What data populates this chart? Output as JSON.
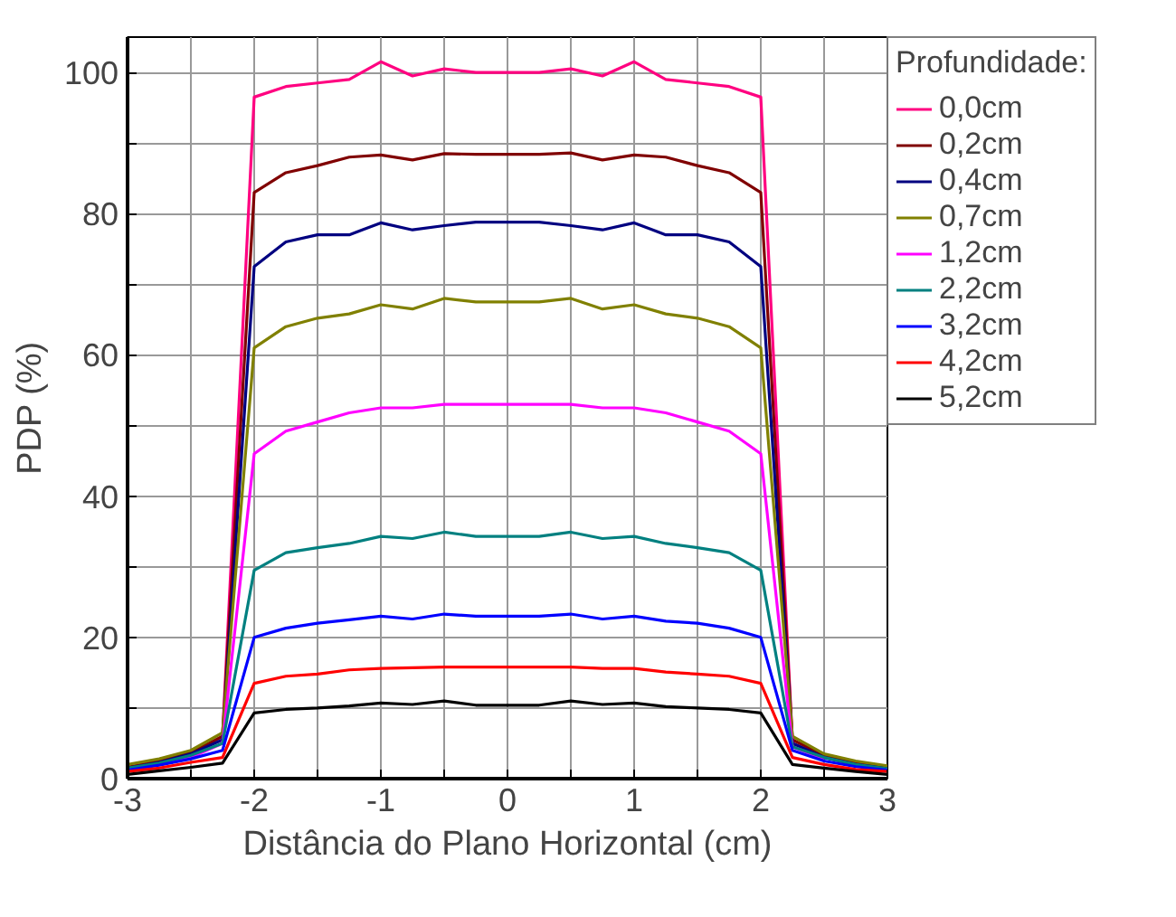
{
  "chart_data": {
    "type": "line",
    "xlabel": "Distância do Plano Horizontal (cm)",
    "ylabel": "PDP (%)",
    "legend_title": "Profundidade:",
    "x": [
      -3,
      -2.75,
      -2.5,
      -2.25,
      -2,
      -1.75,
      -1.5,
      -1.25,
      -1,
      -0.75,
      -0.5,
      -0.25,
      0,
      0.25,
      0.5,
      0.75,
      1,
      1.25,
      1.5,
      1.75,
      2,
      2.25,
      2.5,
      2.75,
      3
    ],
    "xlim": [
      -3,
      3
    ],
    "xticks": [
      -3,
      {
        "value": -2.5,
        "label": null
      },
      -2,
      {
        "value": -1.5,
        "label": null
      },
      -1,
      {
        "value": -0.5,
        "label": null
      },
      0,
      {
        "value": 0.5,
        "label": null
      },
      1,
      {
        "value": 1.5,
        "label": null
      },
      2,
      {
        "value": 2.5,
        "label": null
      },
      3
    ],
    "ylim": [
      0,
      105
    ],
    "yticks": [
      0,
      {
        "value": 10,
        "label": null
      },
      20,
      {
        "value": 30,
        "label": null
      },
      40,
      {
        "value": 50,
        "label": null
      },
      60,
      {
        "value": 70,
        "label": null
      },
      80,
      {
        "value": 90,
        "label": null
      },
      100
    ],
    "grid": true,
    "legend": "top right",
    "line_style": "solid",
    "series": [
      {
        "name": "0,0cm",
        "color": "#ff0080",
        "values": [
          null,
          null,
          3.5,
          6,
          96.5,
          98,
          98.5,
          99,
          101.5,
          99.5,
          100.5,
          100,
          100,
          100,
          100.5,
          99.5,
          101.5,
          99,
          98.5,
          98,
          96.5,
          5,
          3,
          null,
          null
        ]
      },
      {
        "name": "0,2cm",
        "color": "#800000",
        "values": [
          1.6,
          2.5,
          3.7,
          6,
          83,
          85.8,
          86.8,
          88,
          88.3,
          87.6,
          88.5,
          88.4,
          88.4,
          88.4,
          88.6,
          87.6,
          88.3,
          88,
          86.8,
          85.8,
          83,
          5.5,
          3.3,
          2.3,
          1.6
        ]
      },
      {
        "name": "0,4cm",
        "color": "#000080",
        "values": [
          1.5,
          2.3,
          3.5,
          5.5,
          72.5,
          76,
          77,
          77,
          78.7,
          77.7,
          78.3,
          78.8,
          78.8,
          78.8,
          78.3,
          77.7,
          78.7,
          77,
          77,
          76,
          72.5,
          5,
          3,
          2,
          1.5
        ]
      },
      {
        "name": "0,7cm",
        "color": "#808000",
        "values": [
          2,
          2.8,
          4,
          6.5,
          61,
          64,
          65.2,
          65.8,
          67.1,
          66.5,
          68,
          67.5,
          67.5,
          67.5,
          68,
          66.5,
          67.1,
          65.8,
          65.2,
          64,
          61,
          6,
          3.5,
          2.5,
          1.8
        ]
      },
      {
        "name": "1,2cm",
        "color": "#ff00ff",
        "values": [
          null,
          2,
          3,
          5,
          46,
          49.2,
          50.5,
          51.8,
          52.5,
          52.5,
          53,
          53,
          53,
          53,
          53,
          52.5,
          52.5,
          51.8,
          50.5,
          49.2,
          46,
          4.5,
          2.8,
          null,
          null
        ]
      },
      {
        "name": "2,2cm",
        "color": "#008080",
        "values": [
          1.5,
          2.2,
          3.3,
          5,
          29.5,
          32,
          32.7,
          33.3,
          34.3,
          34,
          34.9,
          34.3,
          34.3,
          34.3,
          34.9,
          34,
          34.3,
          33.3,
          32.7,
          32,
          29.5,
          4.5,
          3,
          2,
          1.4
        ]
      },
      {
        "name": "3,2cm",
        "color": "#0000ff",
        "values": [
          1.2,
          1.9,
          2.8,
          4,
          20,
          21.3,
          22,
          22.5,
          23,
          22.6,
          23.3,
          23,
          23,
          23,
          23.3,
          22.6,
          23,
          22.3,
          22,
          21.3,
          20,
          4,
          2.5,
          1.7,
          1.2
        ]
      },
      {
        "name": "4,2cm",
        "color": "#ff0000",
        "values": [
          1,
          1.5,
          2.3,
          3,
          13.5,
          14.5,
          14.8,
          15.4,
          15.6,
          15.7,
          15.8,
          15.8,
          15.8,
          15.8,
          15.8,
          15.6,
          15.6,
          15.1,
          14.8,
          14.5,
          13.5,
          3,
          2,
          1.3,
          1
        ]
      },
      {
        "name": "5,2cm",
        "color": "#000000",
        "values": [
          0.6,
          1.1,
          1.6,
          2.2,
          9.3,
          9.8,
          10,
          10.3,
          10.7,
          10.5,
          11,
          10.4,
          10.4,
          10.4,
          11,
          10.5,
          10.7,
          10.2,
          10,
          9.8,
          9.3,
          2,
          1.5,
          1,
          0.6
        ]
      }
    ]
  }
}
